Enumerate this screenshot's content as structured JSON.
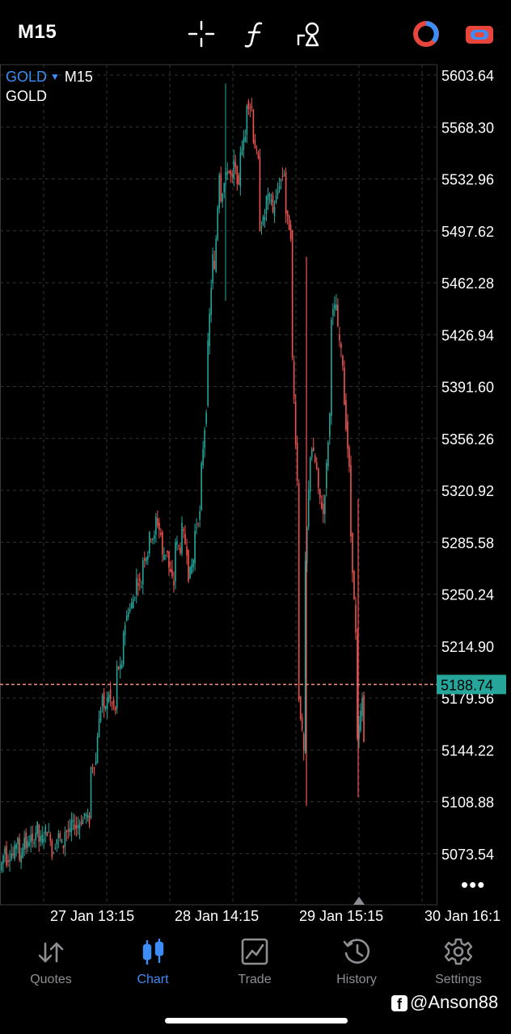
{
  "header": {
    "timeframe": "M15",
    "icons": [
      "crosshair-icon",
      "indicators-icon",
      "objects-icon",
      "account-pie-icon",
      "switch-icon"
    ]
  },
  "chart_info": {
    "symbol": "GOLD",
    "timeframe": "M15",
    "description": "GOLD"
  },
  "current_price": "5188.74",
  "chart_data": {
    "type": "candlestick",
    "price_labels": [
      "5603.64",
      "5568.30",
      "5532.96",
      "5497.62",
      "5462.28",
      "5426.94",
      "5391.60",
      "5356.26",
      "5320.92",
      "5285.58",
      "5250.24",
      "5214.90",
      "5179.56",
      "5144.22",
      "5108.88",
      "5073.54"
    ],
    "time_labels": [
      "27 Jan 13:15",
      "28 Jan 14:15",
      "29 Jan 15:15",
      "30 Jan 16:1"
    ],
    "ylim": [
      5059.04,
      5612.0
    ],
    "current_price": 5188.74,
    "grid": true,
    "colors": {
      "up": "#26a69a",
      "down": "#ef5350",
      "grid": "#333333",
      "price_line": "#e58a6f",
      "price_tag_bg": "#26a69a"
    },
    "close_path": [
      [
        5062,
        5083
      ],
      [
        5068,
        5076
      ],
      [
        5072,
        5090
      ],
      [
        5067,
        5091
      ],
      [
        5078,
        5087
      ],
      [
        5080,
        5097
      ],
      [
        5082,
        5087
      ],
      [
        5090,
        5083
      ],
      [
        5072,
        5088
      ],
      [
        5086,
        5076
      ],
      [
        5089,
        5088
      ],
      [
        5095,
        5090
      ],
      [
        5093,
        5098
      ],
      [
        5101,
        5094
      ],
      [
        5132,
        5137
      ],
      [
        5155,
        5190
      ],
      [
        5170,
        5187
      ],
      [
        5178,
        5168
      ],
      [
        5200,
        5200
      ],
      [
        5225,
        5245
      ],
      [
        5240,
        5254
      ],
      [
        5260,
        5255
      ],
      [
        5274,
        5279
      ],
      [
        5290,
        5288
      ],
      [
        5302,
        5287
      ],
      [
        5276,
        5281
      ],
      [
        5268,
        5253
      ],
      [
        5286,
        5279
      ],
      [
        5296,
        5274
      ],
      [
        5262,
        5278
      ],
      [
        5293,
        5309
      ],
      [
        5337,
        5390
      ],
      [
        5420,
        5500
      ],
      [
        5470,
        5560
      ],
      [
        5520,
        5540
      ],
      [
        5540,
        5530
      ],
      [
        5545,
        5520
      ],
      [
        5552,
        5565
      ],
      [
        5585,
        5580
      ],
      [
        5560,
        5540
      ],
      [
        5500,
        5510
      ],
      [
        5520,
        5520
      ],
      [
        5510,
        5530
      ],
      [
        5530,
        5540
      ],
      [
        5510,
        5490
      ],
      [
        5410,
        5300
      ],
      [
        5180,
        5130
      ],
      [
        5270,
        5370
      ],
      [
        5350,
        5330
      ],
      [
        5320,
        5300
      ],
      [
        5320,
        5390
      ],
      [
        5440,
        5450
      ],
      [
        5430,
        5400
      ],
      [
        5380,
        5320
      ],
      [
        5290,
        5200
      ],
      [
        5150,
        5188.74
      ]
    ]
  },
  "tabs": [
    {
      "label": "Quotes",
      "icon": "quotes-icon",
      "active": false
    },
    {
      "label": "Chart",
      "icon": "chart-icon",
      "active": true
    },
    {
      "label": "Trade",
      "icon": "trade-icon",
      "active": false
    },
    {
      "label": "History",
      "icon": "history-icon",
      "active": false
    },
    {
      "label": "Settings",
      "icon": "settings-icon",
      "active": false
    }
  ],
  "watermark": "@Anson88"
}
